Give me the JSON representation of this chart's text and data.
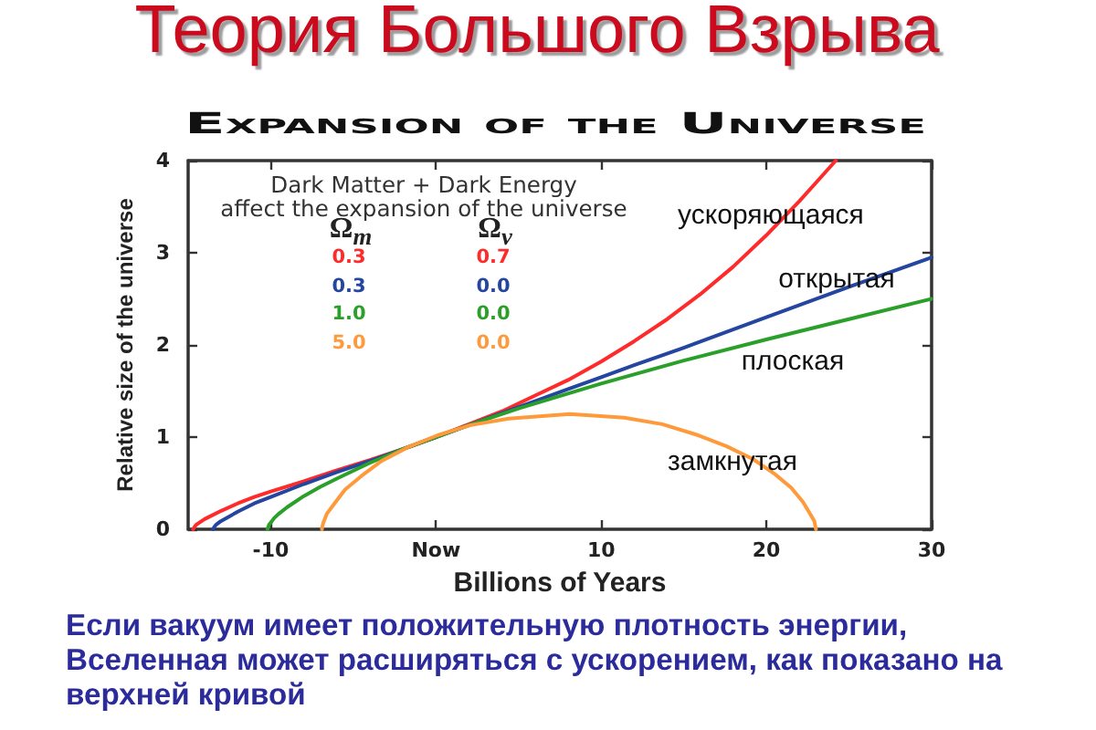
{
  "chart_data": {
    "type": "line",
    "title": "Теория Большого Взрыва",
    "subtitle": "Expansion of the Universe",
    "xlabel": "Billions of Years",
    "ylabel": "Relative size of the universe",
    "xlim": [
      -15,
      30
    ],
    "xticks": [
      -10,
      {
        "value": 0,
        "label": "Now"
      },
      10,
      20,
      30
    ],
    "ylim": [
      0,
      4
    ],
    "yticks": [
      0,
      1,
      2,
      3,
      4
    ],
    "grid": false,
    "legend": false,
    "marker": "none",
    "annotations": [
      "Dark Matter + Dark Energy\naffect the expansion of the universe",
      "Ω$_{m}$",
      "Ω$_{v}$",
      "0.3",
      "0.7",
      "0.3",
      "0.0",
      "1.0",
      "0.0",
      "5.0",
      "0.0",
      "Если вакуум имеет положительную плотность энергии, Вселенная может расширяться с ускорением, как показано на верхней кривой"
    ],
    "series": [
      {
        "name": "ускоряющаяся",
        "color": "#ff2a2a",
        "x": [
          -14.7,
          -14.6,
          -14.5,
          -14,
          -13,
          -12,
          -11,
          -10,
          -8,
          -6,
          -4,
          -2,
          0,
          2,
          4,
          6,
          8,
          10,
          12,
          14,
          16,
          18,
          20,
          22,
          23,
          24.2
        ],
        "values": [
          0,
          0.03,
          0.05,
          0.11,
          0.2,
          0.28,
          0.35,
          0.41,
          0.52,
          0.64,
          0.75,
          0.87,
          1,
          1.14,
          1.28,
          1.45,
          1.62,
          1.82,
          2.04,
          2.28,
          2.55,
          2.85,
          3.19,
          3.56,
          3.76,
          4
        ]
      },
      {
        "name": "открытая",
        "color": "#2445a0",
        "x": [
          -13.5,
          -13.4,
          -13.3,
          -13,
          -12,
          -11,
          -10,
          -8,
          -6,
          -4,
          -2,
          0,
          2,
          4,
          6,
          8,
          10,
          12,
          15,
          20,
          25,
          30
        ],
        "values": [
          0,
          0.03,
          0.05,
          0.09,
          0.19,
          0.28,
          0.35,
          0.49,
          0.62,
          0.74,
          0.87,
          1,
          1.13,
          1.26,
          1.39,
          1.52,
          1.65,
          1.78,
          1.97,
          2.3,
          2.63,
          2.95
        ]
      },
      {
        "name": "плоская",
        "color": "#2aa02a",
        "x": [
          -10.2,
          -10.1,
          -10,
          -9.8,
          -9.5,
          -9,
          -8,
          -7,
          -6,
          -4,
          -2,
          0,
          2,
          5,
          10,
          15,
          20,
          25,
          30
        ],
        "values": [
          0,
          0.05,
          0.07,
          0.12,
          0.17,
          0.24,
          0.36,
          0.46,
          0.55,
          0.72,
          0.87,
          1,
          1.13,
          1.31,
          1.58,
          1.83,
          2.06,
          2.28,
          2.5
        ]
      },
      {
        "name": "замкнутая",
        "color": "#ff9a3c",
        "x": [
          -6.9,
          -6.88,
          -6.8,
          -6.6,
          -6.1,
          -5.5,
          -4.5,
          -3.3,
          -1.7,
          0.1,
          2.1,
          4.4,
          8.1,
          11.4,
          13.7,
          15.7,
          17.6,
          19.2,
          20.5,
          21.5,
          22.2,
          22.6,
          22.9,
          23
        ],
        "values": [
          0,
          0.03,
          0.08,
          0.17,
          0.29,
          0.43,
          0.58,
          0.74,
          0.89,
          1.02,
          1.13,
          1.2,
          1.25,
          1.21,
          1.14,
          1.03,
          0.9,
          0.76,
          0.6,
          0.45,
          0.3,
          0.18,
          0.09,
          0
        ]
      }
    ]
  }
}
